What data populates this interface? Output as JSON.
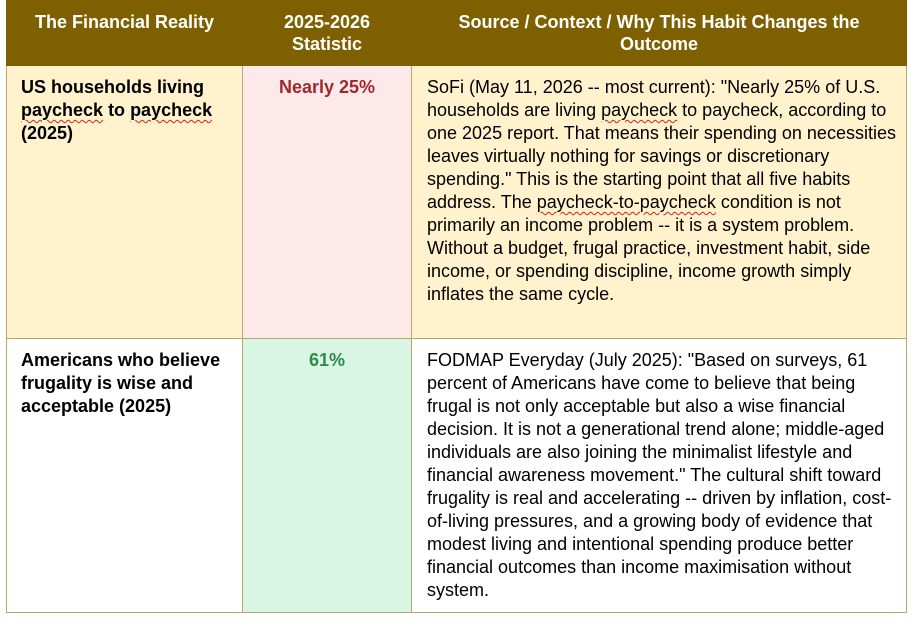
{
  "headers": [
    "The Financial Reality",
    "2025-2026 Statistic",
    "Source / Context / Why This Habit Changes the Outcome"
  ],
  "rows": [
    {
      "label_a": "US households living ",
      "label_sq1": "paycheck",
      "label_b": " to ",
      "label_sq2": "paycheck",
      "label_c": " (2025)",
      "statistic": "Nearly 25%",
      "context_a": "SoFi (May 11, 2026 -- most current): \"Nearly 25% of U.S. households are living ",
      "context_sq1": "paycheck",
      "context_b": " to paycheck, according to one 2025 report. That means their spending on necessities leaves virtually nothing for savings or discretionary spending.\" This is the starting point that all five habits address. The ",
      "context_sq2": "paycheck-to-paycheck",
      "context_c": " condition is not primarily an income problem -- it is a system problem. Without a budget, frugal practice, investment habit, side income, or spending discipline, income growth simply inflates the same cycle."
    },
    {
      "label": "Americans who believe frugality is wise and acceptable (2025)",
      "statistic": "61%",
      "context": "FODMAP Everyday (July 2025): \"Based on surveys, 61 percent of Americans have come to believe that being frugal is not only acceptable but also a wise financial decision. It is not a generational trend alone; middle-aged individuals are also joining the minimalist lifestyle and financial awareness movement.\" The cultural shift toward frugality is real and accelerating -- driven by inflation, cost-of-living pressures, and a growing body of evidence that modest living and intentional spending produce better financial outcomes than income maximisation without system."
    }
  ],
  "colors": {
    "header_bg": "#7f6000",
    "row1_bg": "#fff2cc",
    "row1_stat_bg": "#fde9e9",
    "row1_stat_text": "#a0292c",
    "row2_stat_bg": "#d9f5e3",
    "row2_stat_text": "#2e8a4b"
  }
}
